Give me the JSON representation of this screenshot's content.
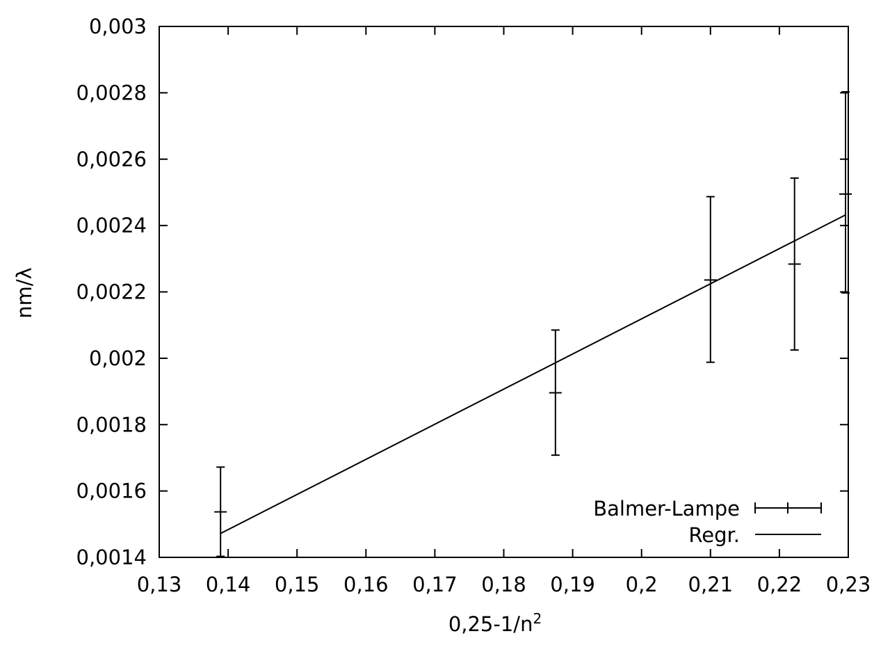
{
  "chart_data": {
    "type": "scatter",
    "xlabel": "0,25-1/n",
    "xlabel_sup": "2",
    "ylabel": "nm/λ",
    "xlim": [
      0.13,
      0.23
    ],
    "ylim": [
      0.0014,
      0.003
    ],
    "x_ticks": [
      0.13,
      0.14,
      0.15,
      0.16,
      0.17,
      0.18,
      0.19,
      0.2,
      0.21,
      0.22,
      0.23
    ],
    "x_tick_labels": [
      "0,13",
      "0,14",
      "0,15",
      "0,16",
      "0,17",
      "0,18",
      "0,19",
      "0,2",
      "0,21",
      "0,22",
      "0,23"
    ],
    "y_ticks": [
      0.0014,
      0.0016,
      0.0018,
      0.002,
      0.0022,
      0.0024,
      0.0026,
      0.0028,
      0.003
    ],
    "y_tick_labels": [
      "0,0014",
      "0,0016",
      "0,0018",
      "0,002",
      "0,0022",
      "0,0024",
      "0,0026",
      "0,0028",
      "0,003"
    ],
    "grid": false,
    "legend_position": "bottom-right",
    "series": [
      {
        "name": "Balmer-Lampe",
        "style": "errorbars",
        "color": "#000000",
        "points": [
          {
            "x": 0.1389,
            "y": 0.001537,
            "ylow": 0.001403,
            "yhigh": 0.001672
          },
          {
            "x": 0.1875,
            "y": 0.001896,
            "ylow": 0.001708,
            "yhigh": 0.002085
          },
          {
            "x": 0.21,
            "y": 0.002236,
            "ylow": 0.001988,
            "yhigh": 0.002487
          },
          {
            "x": 0.2222,
            "y": 0.002284,
            "ylow": 0.002025,
            "yhigh": 0.002543
          },
          {
            "x": 0.2296,
            "y": 0.002495,
            "ylow": 0.002197,
            "yhigh": 0.002803
          }
        ]
      },
      {
        "name": "Regr.",
        "style": "line",
        "color": "#000000",
        "x": [
          0.1389,
          0.2296
        ],
        "y": [
          0.001472,
          0.002432
        ]
      }
    ]
  }
}
